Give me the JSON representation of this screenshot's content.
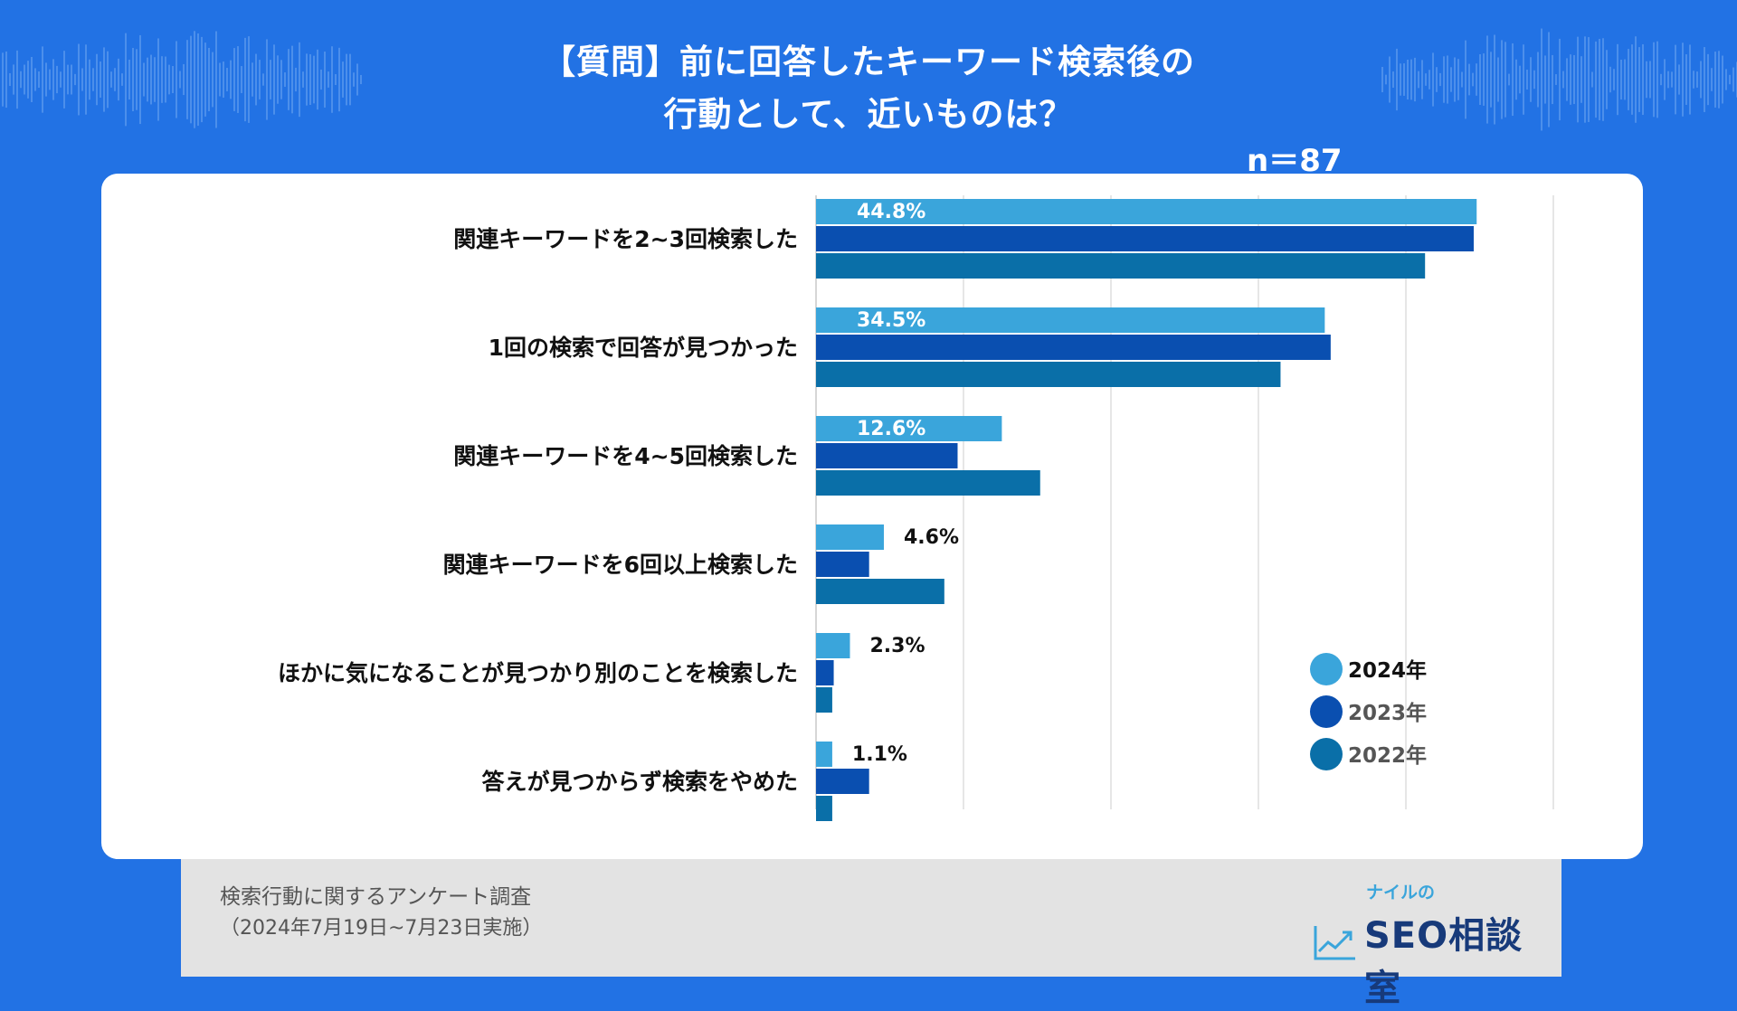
{
  "header": {
    "title_line1": "【質問】前に回答したキーワード検索後の",
    "title_line2": "行動として、近いものは？",
    "sample_size": "n＝87"
  },
  "chart_data": {
    "type": "bar",
    "orientation": "horizontal",
    "title": "【質問】前に回答したキーワード検索後の行動として、近いものは？",
    "categories": [
      "関連キーワードを2~3回検索した",
      "1回の検索で回答が見つかった",
      "関連キーワードを4~5回検索した",
      "関連キーワードを6回以上検索した",
      "ほかに気になることが見つかり別のことを検索した",
      "答えが見つからず検索をやめた"
    ],
    "series": [
      {
        "name": "2024年",
        "color": "#3AA5DB",
        "values": [
          44.8,
          34.5,
          12.6,
          4.6,
          2.3,
          1.1
        ],
        "labels": [
          "44.8%",
          "34.5%",
          "12.6%",
          "4.6%",
          "2.3%",
          "1.1%"
        ]
      },
      {
        "name": "2023年",
        "color": "#0A4FB0",
        "values": [
          44.6,
          34.9,
          9.6,
          3.6,
          1.2,
          3.6
        ]
      },
      {
        "name": "2022年",
        "color": "#0A6FA8",
        "values": [
          41.3,
          31.5,
          15.2,
          8.7,
          1.1,
          1.1
        ]
      }
    ],
    "xlim": [
      0,
      50
    ],
    "grid": true,
    "legend": "right"
  },
  "footer": {
    "survey_title": "検索行動に関するアンケート調査",
    "survey_period": "（2024年7月19日~7月23日実施）"
  },
  "logo": {
    "small_text": "ナイルの",
    "main_text": "SEO相談室",
    "icon": "chart-line-icon"
  },
  "colors": {
    "background": "#2272E4",
    "card": "#ffffff",
    "footer": "#E3E3E3"
  }
}
